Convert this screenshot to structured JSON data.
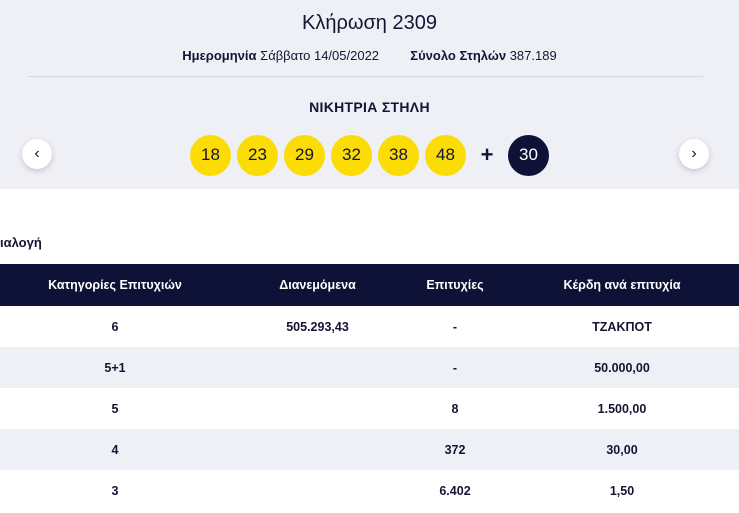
{
  "draw": {
    "title": "Κλήρωση 2309",
    "date_label": "Ημερομηνία",
    "date_value": "Σάββατο 14/05/2022",
    "columns_label": "Σύνολο Στηλών",
    "columns_value": "387.189"
  },
  "winning": {
    "label": "ΝΙΚΗΤΡΙΑ ΣΤΗΛΗ",
    "numbers": [
      "18",
      "23",
      "29",
      "32",
      "38",
      "48"
    ],
    "plus": "+",
    "bonus": "30"
  },
  "nav": {
    "prev": "‹",
    "next": "›",
    "prev_icon": "chevron-left-icon",
    "next_icon": "chevron-right-icon"
  },
  "section_title": "ιαλογή",
  "table": {
    "headers": [
      "Κατηγορίες Επιτυχιών",
      "Διανεμόμενα",
      "Επιτυχίες",
      "Κέρδη ανά επιτυχία"
    ],
    "rows": [
      [
        "6",
        "505.293,43",
        "-",
        "ΤΖΑΚΠΟΤ"
      ],
      [
        "5+1",
        "",
        "-",
        "50.000,00"
      ],
      [
        "5",
        "",
        "8",
        "1.500,00"
      ],
      [
        "4",
        "",
        "372",
        "30,00"
      ],
      [
        "3",
        "",
        "6.402",
        "1,50"
      ]
    ]
  },
  "colors": {
    "ball": "#fbdc04",
    "bonus_ball": "#0d1236",
    "header_bg": "#0d1236",
    "panel_bg": "#eef0f6"
  }
}
